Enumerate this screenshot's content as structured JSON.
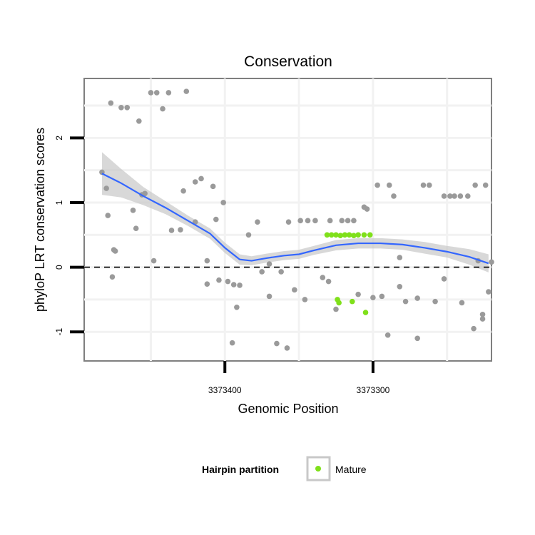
{
  "chart_data": {
    "type": "scatter",
    "title": "Conservation",
    "xlabel": "Genomic Position",
    "ylabel": "phyloP LRT conservation scores",
    "x_axis_reversed": true,
    "xlim": [
      3373495,
      3373220
    ],
    "ylim": [
      -1.45,
      2.92
    ],
    "x_ticks": [
      3373400,
      3373300
    ],
    "x_tick_labels": [
      "3373400",
      "3373300"
    ],
    "y_ticks": [
      -1,
      0,
      1,
      2
    ],
    "y_tick_labels": [
      "-1",
      "0",
      "1",
      "2"
    ],
    "grid": true,
    "reference_line": {
      "y": 0,
      "style": "dashed"
    },
    "colors": {
      "background_points": "#9a9a9a",
      "mature_points": "#7fe01a",
      "smooth_line": "#3366ff",
      "confidence_band": "#c8c8c8"
    },
    "series": [
      {
        "role": "background",
        "points": [
          [
            3373483,
            1.47
          ],
          [
            3373480,
            1.22
          ],
          [
            3373479,
            0.8
          ],
          [
            3373477,
            2.54
          ],
          [
            3373475,
            0.27
          ],
          [
            3373474,
            0.25
          ],
          [
            3373470,
            2.47
          ],
          [
            3373466,
            2.47
          ],
          [
            3373462,
            0.88
          ],
          [
            3373458,
            2.26
          ],
          [
            3373454,
            1.14
          ],
          [
            3373450,
            2.7
          ],
          [
            3373446,
            2.7
          ],
          [
            3373442,
            2.45
          ],
          [
            3373438,
            2.7
          ],
          [
            3373430,
            0.58
          ],
          [
            3373426,
            2.72
          ],
          [
            3373420,
            1.32
          ],
          [
            3373416,
            1.37
          ],
          [
            3373412,
            -0.26
          ],
          [
            3373406,
            0.74
          ],
          [
            3373404,
            -0.2
          ],
          [
            3373401,
            1.0
          ],
          [
            3373398,
            -0.22
          ],
          [
            3373394,
            -0.27
          ],
          [
            3373390,
            -0.28
          ],
          [
            3373384,
            0.5
          ],
          [
            3373378,
            0.7
          ],
          [
            3373375,
            -0.07
          ],
          [
            3373370,
            -0.45
          ],
          [
            3373362,
            -0.07
          ],
          [
            3373357,
            0.7
          ],
          [
            3373353,
            -0.35
          ],
          [
            3373349,
            0.72
          ],
          [
            3373344,
            0.72
          ],
          [
            3373339,
            0.72
          ],
          [
            3373334,
            -0.16
          ],
          [
            3373329,
            0.72
          ],
          [
            3373325,
            -0.65
          ],
          [
            3373321,
            0.72
          ],
          [
            3373317,
            0.72
          ],
          [
            3373313,
            0.72
          ],
          [
            3373306,
            0.93
          ],
          [
            3373304,
            0.9
          ],
          [
            3373300,
            -0.47
          ],
          [
            3373297,
            1.27
          ],
          [
            3373294,
            -0.45
          ],
          [
            3373289,
            1.27
          ],
          [
            3373286,
            1.1
          ],
          [
            3373282,
            0.15
          ],
          [
            3373278,
            -0.53
          ],
          [
            3373270,
            -0.48
          ],
          [
            3373266,
            1.27
          ],
          [
            3373262,
            1.27
          ],
          [
            3373258,
            -0.53
          ],
          [
            3373252,
            1.1
          ],
          [
            3373248,
            1.1
          ],
          [
            3373245,
            1.1
          ],
          [
            3373241,
            1.1
          ],
          [
            3373236,
            1.1
          ],
          [
            3373231,
            1.27
          ],
          [
            3373229,
            0.1
          ],
          [
            3373226,
            -0.73
          ],
          [
            3373224,
            1.27
          ],
          [
            3373222,
            -0.38
          ],
          [
            3373220,
            0.08
          ],
          [
            3373460,
            0.6
          ],
          [
            3373456,
            1.12
          ],
          [
            3373436,
            0.57
          ],
          [
            3373428,
            1.18
          ],
          [
            3373420,
            0.7
          ],
          [
            3373412,
            0.1
          ],
          [
            3373408,
            1.25
          ],
          [
            3373392,
            -0.62
          ],
          [
            3373370,
            0.05
          ],
          [
            3373346,
            -0.5
          ],
          [
            3373330,
            -0.22
          ],
          [
            3373310,
            -0.42
          ],
          [
            3373290,
            -1.05
          ],
          [
            3373270,
            -1.1
          ],
          [
            3373240,
            -0.55
          ],
          [
            3373232,
            -0.95
          ],
          [
            3373226,
            -0.8
          ],
          [
            3373252,
            -0.18
          ],
          [
            3373282,
            -0.3
          ],
          [
            3373365,
            -1.18
          ],
          [
            3373358,
            -1.25
          ],
          [
            3373395,
            -1.17
          ],
          [
            3373448,
            0.1
          ],
          [
            3373476,
            -0.15
          ]
        ]
      },
      {
        "name": "Mature",
        "role": "highlight",
        "points": [
          [
            3373331,
            0.5
          ],
          [
            3373328,
            0.5
          ],
          [
            3373325,
            0.5
          ],
          [
            3373322,
            0.49
          ],
          [
            3373319,
            0.5
          ],
          [
            3373316,
            0.5
          ],
          [
            3373313,
            0.49
          ],
          [
            3373310,
            0.5
          ],
          [
            3373306,
            0.5
          ],
          [
            3373302,
            0.5
          ],
          [
            3373324,
            -0.5
          ],
          [
            3373323,
            -0.55
          ],
          [
            3373314,
            -0.53
          ],
          [
            3373305,
            -0.7
          ]
        ]
      }
    ],
    "smooth": {
      "method": "loess",
      "x": [
        3373483,
        3373470,
        3373455,
        3373440,
        3373425,
        3373410,
        3373400,
        3373390,
        3373382,
        3373372,
        3373360,
        3373350,
        3373340,
        3373325,
        3373310,
        3373295,
        3373280,
        3373265,
        3373250,
        3373235,
        3373222
      ],
      "y": [
        1.45,
        1.3,
        1.1,
        0.92,
        0.72,
        0.52,
        0.3,
        0.12,
        0.1,
        0.14,
        0.18,
        0.2,
        0.26,
        0.34,
        0.37,
        0.37,
        0.35,
        0.3,
        0.24,
        0.16,
        0.06
      ],
      "se_upper": [
        1.78,
        1.52,
        1.24,
        1.02,
        0.8,
        0.6,
        0.38,
        0.2,
        0.17,
        0.21,
        0.25,
        0.27,
        0.33,
        0.42,
        0.45,
        0.45,
        0.43,
        0.39,
        0.33,
        0.28,
        0.2
      ],
      "se_lower": [
        1.12,
        1.08,
        0.96,
        0.82,
        0.64,
        0.44,
        0.22,
        0.04,
        0.03,
        0.07,
        0.11,
        0.13,
        0.19,
        0.26,
        0.29,
        0.29,
        0.27,
        0.21,
        0.15,
        0.04,
        -0.08
      ]
    },
    "legend": {
      "title": "Hairpin partition",
      "entries": [
        {
          "label": "Mature",
          "color": "#7fe01a"
        }
      ],
      "placement": "bottom"
    }
  }
}
